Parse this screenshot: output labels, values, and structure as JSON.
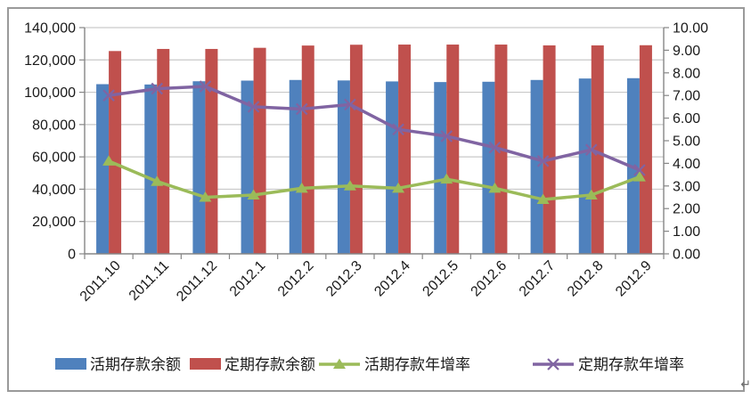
{
  "page": {
    "paragraph_mark": "↵"
  },
  "chart_data": {
    "type": "bar",
    "subtype": "bar-line-combo",
    "categories": [
      "2011.10",
      "2011.11",
      "2011.12",
      "2012.1",
      "2012.2",
      "2012.3",
      "2012.4",
      "2012.5",
      "2012.6",
      "2012.7",
      "2012.8",
      "2012.9"
    ],
    "series": [
      {
        "name": "活期存款余额",
        "type": "bar",
        "axis": "left",
        "marker": "square",
        "color": "#4F81BD",
        "values": [
          105000,
          104800,
          106800,
          107200,
          107600,
          107300,
          106700,
          106300,
          106500,
          107600,
          108500,
          108700
        ]
      },
      {
        "name": "定期存款余额",
        "type": "bar",
        "axis": "left",
        "marker": "square",
        "color": "#C0504D",
        "values": [
          125500,
          126800,
          126800,
          127500,
          128900,
          129400,
          129500,
          129500,
          129500,
          129000,
          129000,
          129100
        ]
      },
      {
        "name": "活期存款年增率",
        "type": "line",
        "axis": "right",
        "marker": "triangle",
        "color": "#9BBB59",
        "values": [
          4.1,
          3.2,
          2.5,
          2.6,
          2.9,
          3.0,
          2.9,
          3.3,
          2.9,
          2.4,
          2.6,
          3.4
        ]
      },
      {
        "name": "定期存款年增率",
        "type": "line",
        "axis": "right",
        "marker": "x",
        "color": "#8064A2",
        "values": [
          7.0,
          7.3,
          7.4,
          6.5,
          6.4,
          6.6,
          5.5,
          5.2,
          4.7,
          4.1,
          4.6,
          3.7
        ]
      }
    ],
    "left_axis": {
      "min": 0,
      "max": 140000,
      "step": 20000,
      "tick_labels": [
        "140,000",
        "120,000",
        "100,000",
        "80,000",
        "60,000",
        "40,000",
        "20,000",
        "0"
      ]
    },
    "right_axis": {
      "min": 0,
      "max": 10,
      "step": 1,
      "tick_labels": [
        "10.00",
        "9.00",
        "8.00",
        "7.00",
        "6.00",
        "5.00",
        "4.00",
        "3.00",
        "2.00",
        "1.00",
        "0.00"
      ]
    },
    "legend_position": "bottom",
    "grid": true
  },
  "colors": {
    "chart_border": "#9a9a9a",
    "axis_line": "#868686",
    "gridline": "#c9c9c9",
    "text": "#1a1a1a"
  }
}
